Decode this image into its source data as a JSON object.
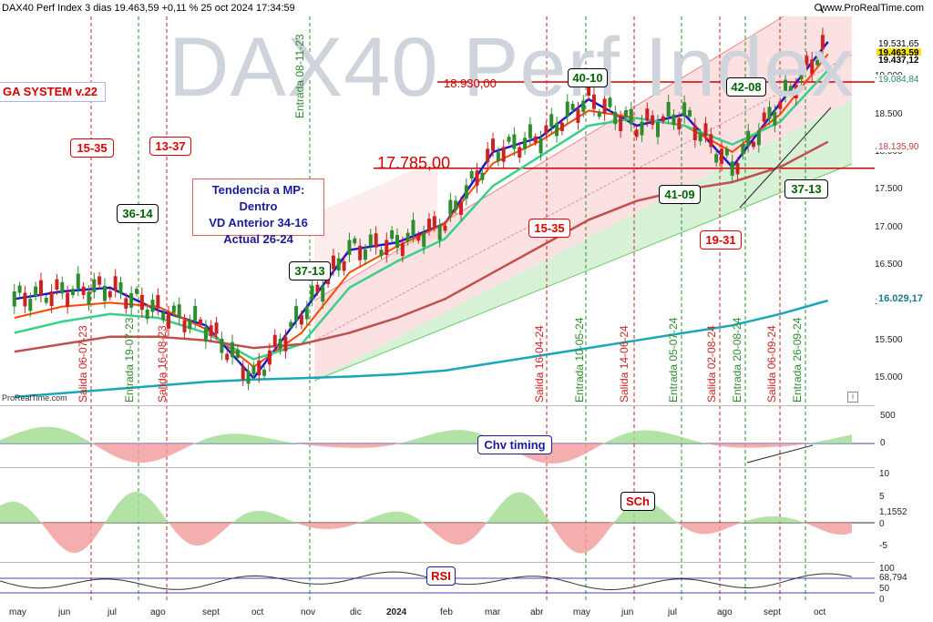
{
  "header": {
    "title": "DAX40 Perf Index 3 dias 19.463,59 +0,11 % 25 oct 2024 17:34:59",
    "brand": "www.ProRealTime.com",
    "watermark": "DAX40 Perf Index",
    "footer_brand": "ProRealTime.com"
  },
  "annotations": {
    "system": "GA SYSTEM v.22",
    "trend_lines": [
      "Tendencia a MP: Dentro",
      "VD Anterior 34-16",
      "Actual 26-24"
    ],
    "level_high": "18.930,00",
    "level_low": "17.785,00",
    "boxes": [
      {
        "text": "15-35",
        "color": "red"
      },
      {
        "text": "13-37",
        "color": "red"
      },
      {
        "text": "36-14",
        "color": "green"
      },
      {
        "text": "37-13",
        "color": "green"
      },
      {
        "text": "15-35",
        "color": "red"
      },
      {
        "text": "40-10",
        "color": "green"
      },
      {
        "text": "42-08",
        "color": "green"
      },
      {
        "text": "41-09",
        "color": "green"
      },
      {
        "text": "19-31",
        "color": "red"
      },
      {
        "text": "37-13",
        "color": "green"
      }
    ],
    "signals": [
      {
        "text": "Entrada 08-11-23",
        "color": "green"
      },
      {
        "text": "Salida 06-07-23",
        "color": "red"
      },
      {
        "text": "Entrada 19-07-23",
        "color": "green"
      },
      {
        "text": "Salida 16-08-23",
        "color": "red"
      },
      {
        "text": "Salida 16-04-24",
        "color": "red"
      },
      {
        "text": "Entrada 10-05-24",
        "color": "green"
      },
      {
        "text": "Salida 14-06-24",
        "color": "red"
      },
      {
        "text": "Entrada 05-07-24",
        "color": "green"
      },
      {
        "text": "Salida 02-08-24",
        "color": "red"
      },
      {
        "text": "Entrada 20-08-24",
        "color": "green"
      },
      {
        "text": "Salida 06-09-24",
        "color": "red"
      },
      {
        "text": "Entrada 26-09-24",
        "color": "green"
      }
    ],
    "panel_labels": {
      "chv": "Chv timing",
      "sch": "SCh",
      "rsi": "RSI"
    }
  },
  "right_axis": {
    "price_ticks": [
      "19.000",
      "18.500",
      "18.000",
      "17.500",
      "17.000",
      "16.500",
      "16.000",
      "15.500",
      "15.000"
    ],
    "price_tags": [
      {
        "text": "19.531,65",
        "color": "#ffffff",
        "text_color": "#000"
      },
      {
        "text": "19.463,59",
        "color": "#ffe000",
        "text_color": "#000"
      },
      {
        "text": "19.437,12",
        "color": "#ffffff",
        "text_color": "#000"
      },
      {
        "text": "19.084,84",
        "color": "#ffffff",
        "text_color": "#2a8a5a"
      },
      {
        "text": "18.135,90",
        "color": "#ffffff",
        "text_color": "#c04040"
      },
      {
        "text": "16.029,17",
        "color": "#ffffff",
        "text_color": "#1a7a8a"
      }
    ],
    "chv_ticks": [
      "500",
      "0"
    ],
    "sch_ticks": [
      "10",
      "5",
      "1,1552",
      "0",
      "-5"
    ],
    "rsi_ticks": [
      "100",
      "68,794",
      "50",
      "0"
    ]
  },
  "x_axis": {
    "labels": [
      "may",
      "jun",
      "jul",
      "ago",
      "sept",
      "oct",
      "nov",
      "dic",
      "2024",
      "feb",
      "mar",
      "abr",
      "may",
      "jun",
      "jul",
      "ago",
      "sept",
      "oct"
    ]
  },
  "colors": {
    "candle_up": "#2e8b2e",
    "candle_down": "#cc2222",
    "ema_fast": "#1a1acc",
    "ema_mid": "#ff4500",
    "ema_slow": "#c0504d",
    "ema_long": "#1aa7b8",
    "ema_green": "#3ad08a",
    "channel_red": "#f7c9c9",
    "channel_green": "#c8ecc8"
  },
  "chart_data": {
    "type": "line",
    "title": "DAX40 Perf Index",
    "x": [
      "may-23",
      "jun-23",
      "jul-23",
      "ago-23",
      "sept-23",
      "oct-23",
      "nov-23",
      "dic-23",
      "ene-24",
      "feb-24",
      "mar-24",
      "abr-24",
      "may-24",
      "jun-24",
      "jul-24",
      "ago-24",
      "sept-24",
      "oct-24"
    ],
    "series": [
      {
        "values": [
          16050,
          16150,
          16200,
          15900,
          15700,
          15000,
          15850,
          16700,
          16800,
          17050,
          18000,
          18200,
          18700,
          18350,
          18500,
          17800,
          18650,
          19463
        ]
      },
      {
        "values": [
          15800,
          15950,
          16000,
          15950,
          15650,
          15150,
          15600,
          16400,
          16750,
          17050,
          17850,
          18150,
          18550,
          18450,
          18350,
          18000,
          18500,
          19300
        ]
      },
      {
        "values": [
          15600,
          15750,
          15850,
          15800,
          15600,
          15250,
          15450,
          16200,
          16550,
          16850,
          17550,
          17950,
          18350,
          18450,
          18350,
          18100,
          18400,
          19085
        ]
      },
      {
        "values": [
          15350,
          15450,
          15550,
          15550,
          15500,
          15400,
          15450,
          15600,
          15800,
          16050,
          16400,
          16750,
          17100,
          17350,
          17500,
          17600,
          17800,
          18136
        ]
      },
      {
        "values": [
          14750,
          14800,
          14850,
          14900,
          14950,
          14980,
          15000,
          15020,
          15050,
          15100,
          15200,
          15300,
          15400,
          15500,
          15600,
          15700,
          15850,
          16029
        ]
      }
    ],
    "ylim": [
      14700,
      19800
    ],
    "levels": [
      18930,
      17785
    ],
    "grid": false
  }
}
